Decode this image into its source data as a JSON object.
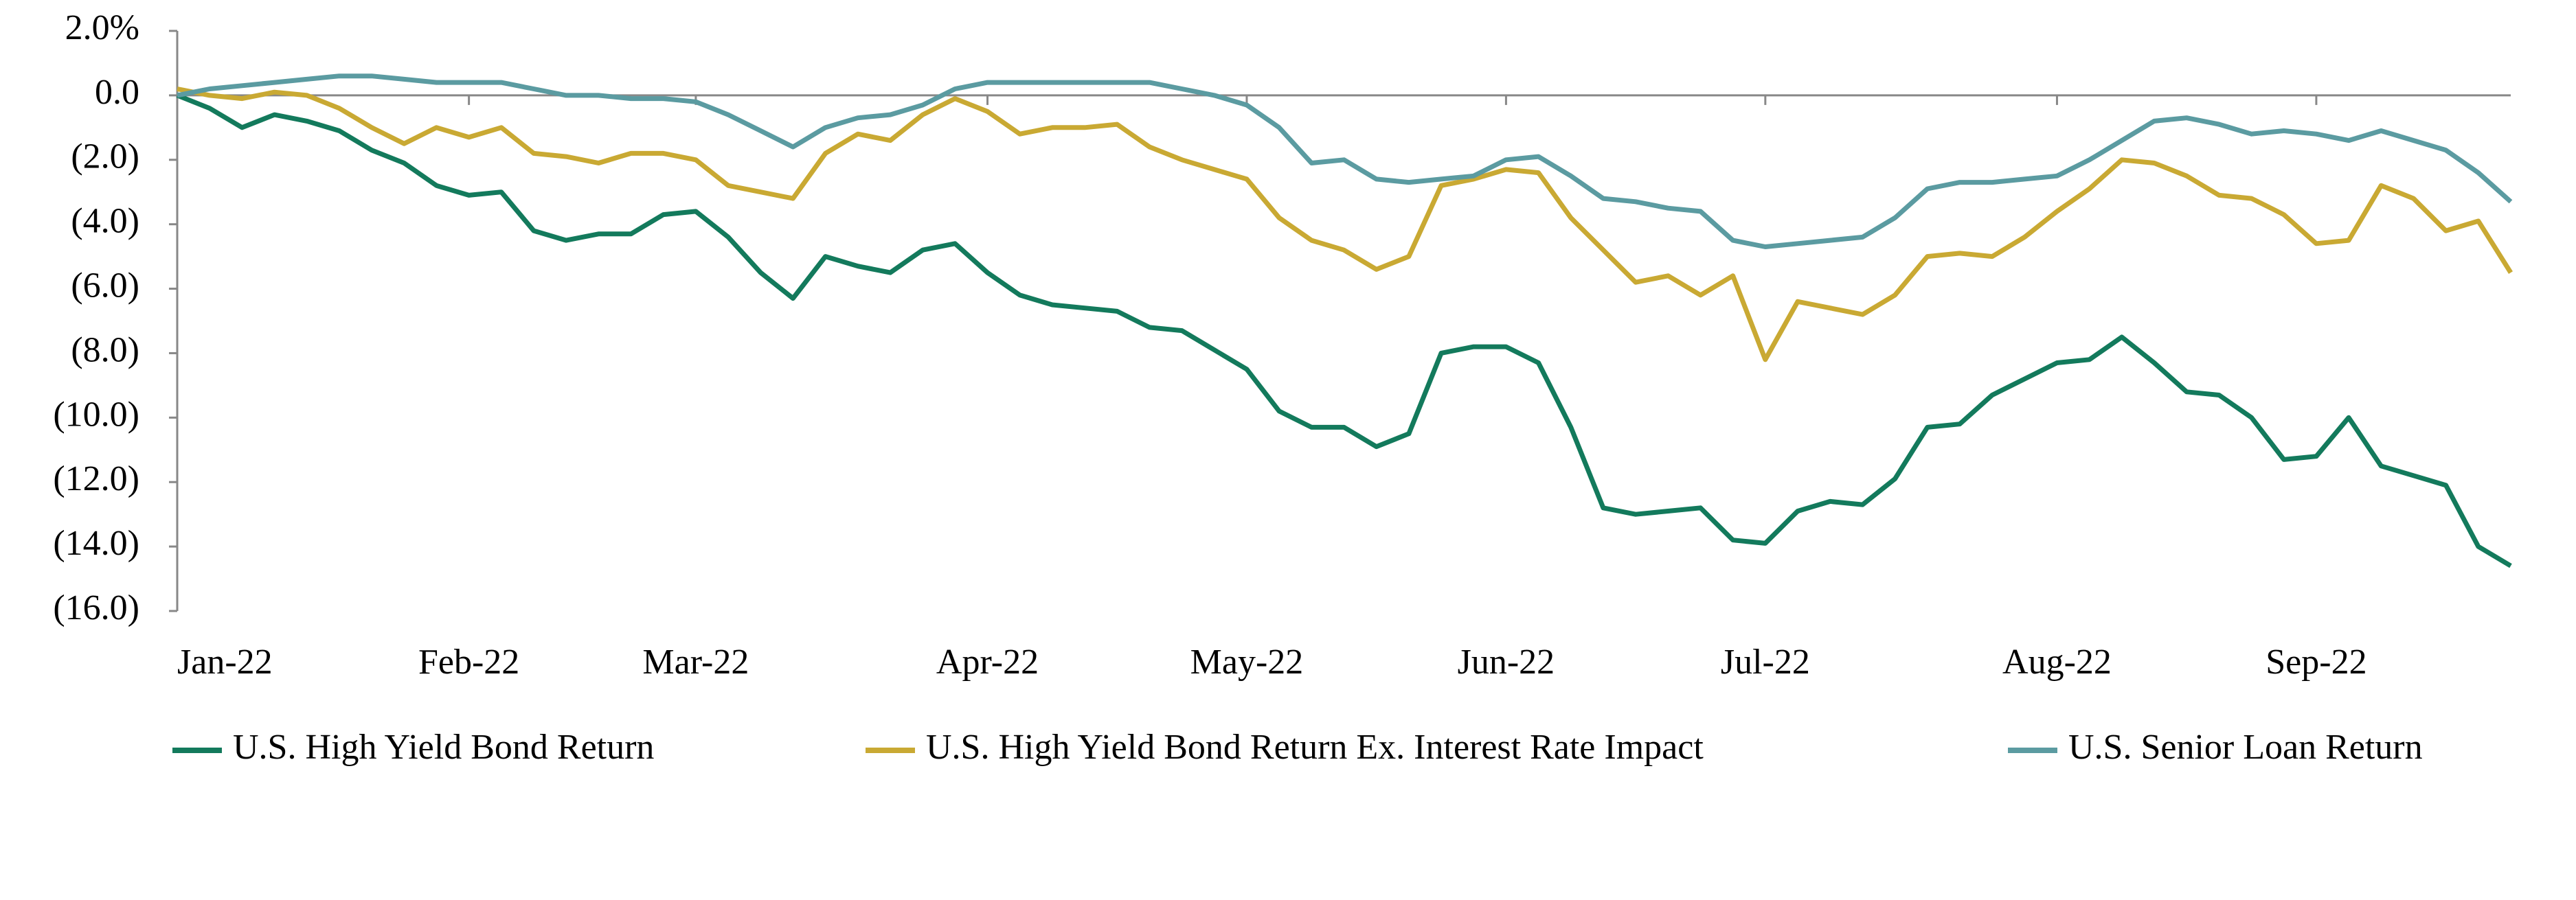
{
  "chart_data": {
    "type": "line",
    "categories": [
      "Jan-22",
      null,
      null,
      null,
      null,
      null,
      null,
      null,
      null,
      "Feb-22",
      null,
      null,
      null,
      null,
      null,
      null,
      "Mar-22",
      null,
      null,
      null,
      null,
      null,
      null,
      null,
      null,
      "Apr-22",
      null,
      null,
      null,
      null,
      null,
      null,
      null,
      "May-22",
      null,
      null,
      null,
      null,
      null,
      null,
      null,
      "Jun-22",
      null,
      null,
      null,
      null,
      null,
      null,
      null,
      "Jul-22",
      null,
      null,
      null,
      null,
      null,
      null,
      null,
      null,
      "Aug-22",
      null,
      null,
      null,
      null,
      null,
      null,
      null,
      "Sep-22",
      null,
      null,
      null,
      null,
      null,
      null
    ],
    "series": [
      {
        "name": "U.S. High Yield Bond Return",
        "color": "#137a5c",
        "values": [
          0,
          -0.4,
          -1.0,
          -0.6,
          -0.8,
          -1.1,
          -1.7,
          -2.1,
          -2.8,
          -3.1,
          -3.0,
          -4.2,
          -4.5,
          -4.3,
          -4.3,
          -3.7,
          -3.6,
          -4.4,
          -5.5,
          -6.3,
          -5.0,
          -5.3,
          -5.5,
          -4.8,
          -4.6,
          -5.5,
          -6.2,
          -6.5,
          -6.6,
          -6.7,
          -7.2,
          -7.3,
          -7.9,
          -8.5,
          -9.8,
          -10.3,
          -10.3,
          -10.9,
          -10.5,
          -8.0,
          -7.8,
          -7.8,
          -8.3,
          -10.3,
          -12.8,
          -13.0,
          -12.9,
          -12.8,
          -13.8,
          -13.9,
          -12.9,
          -12.6,
          -12.7,
          -11.9,
          -10.3,
          -10.2,
          -9.3,
          -8.8,
          -8.3,
          -8.2,
          -7.5,
          -8.3,
          -9.2,
          -9.3,
          -10.0,
          -11.3,
          -11.2,
          -10.0,
          -11.5,
          -11.8,
          -12.1,
          -14.0,
          -14.6
        ]
      },
      {
        "name": "U.S. High Yield Bond Return Ex. Interest Rate Impact",
        "color": "#c9a933",
        "values": [
          0.2,
          0,
          -0.1,
          0.1,
          0,
          -0.4,
          -1.0,
          -1.5,
          -1.0,
          -1.3,
          -1.0,
          -1.8,
          -1.9,
          -2.1,
          -1.8,
          -1.8,
          -2.0,
          -2.8,
          -3.0,
          -3.2,
          -1.8,
          -1.2,
          -1.4,
          -0.6,
          -0.1,
          -0.5,
          -1.2,
          -1.0,
          -1.0,
          -0.9,
          -1.6,
          -2.0,
          -2.3,
          -2.6,
          -3.8,
          -4.5,
          -4.8,
          -5.4,
          -5.0,
          -2.8,
          -2.6,
          -2.3,
          -2.4,
          -3.8,
          -4.8,
          -5.8,
          -5.6,
          -6.2,
          -5.6,
          -8.2,
          -6.4,
          -6.6,
          -6.8,
          -6.2,
          -5.0,
          -4.9,
          -5.0,
          -4.4,
          -3.6,
          -2.9,
          -2.0,
          -2.1,
          -2.5,
          -3.1,
          -3.2,
          -3.7,
          -4.6,
          -4.5,
          -2.8,
          -3.2,
          -4.2,
          -3.9,
          -5.5
        ]
      },
      {
        "name": "U.S. Senior Loan Return",
        "color": "#5b9ba1",
        "values": [
          0,
          0.2,
          0.3,
          0.4,
          0.5,
          0.6,
          0.6,
          0.5,
          0.4,
          0.4,
          0.4,
          0.2,
          0,
          0,
          -0.1,
          -0.1,
          -0.2,
          -0.6,
          -1.1,
          -1.6,
          -1.0,
          -0.7,
          -0.6,
          -0.3,
          0.2,
          0.4,
          0.4,
          0.4,
          0.4,
          0.4,
          0.4,
          0.2,
          0,
          -0.3,
          -1.0,
          -2.1,
          -2.0,
          -2.6,
          -2.7,
          -2.6,
          -2.5,
          -2.0,
          -1.9,
          -2.5,
          -3.2,
          -3.3,
          -3.5,
          -3.6,
          -4.5,
          -4.7,
          -4.6,
          -4.5,
          -4.4,
          -3.8,
          -2.9,
          -2.7,
          -2.7,
          -2.6,
          -2.5,
          -2.0,
          -1.4,
          -0.8,
          -0.7,
          -0.9,
          -1.2,
          -1.1,
          -1.2,
          -1.4,
          -1.1,
          -1.4,
          -1.7,
          -2.4,
          -3.3
        ]
      }
    ],
    "ylim": [
      -16,
      2
    ],
    "yticks": [
      {
        "value": 2,
        "label": "2.0%"
      },
      {
        "value": 0,
        "label": "0.0"
      },
      {
        "value": -2,
        "label": "(2.0)"
      },
      {
        "value": -4,
        "label": "(4.0)"
      },
      {
        "value": -6,
        "label": "(6.0)"
      },
      {
        "value": -8,
        "label": "(8.0)"
      },
      {
        "value": -10,
        "label": "(10.0)"
      },
      {
        "value": -12,
        "label": "(12.0)"
      },
      {
        "value": -14,
        "label": "(14.0)"
      },
      {
        "value": -16,
        "label": "(16.0)"
      }
    ],
    "grid": false
  }
}
